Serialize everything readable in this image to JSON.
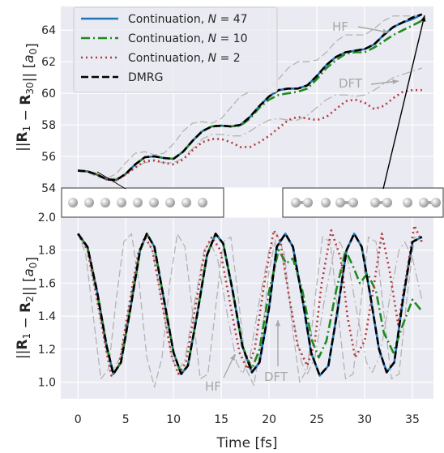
{
  "chart_data": [
    {
      "type": "line",
      "panel": "top",
      "ylabel": "||R1 − R30|| [a0]",
      "ylim": [
        54,
        65.5
      ],
      "xlim": [
        -1.8,
        37.2
      ],
      "yticks": [
        "54",
        "56",
        "58",
        "60",
        "62",
        "64"
      ],
      "grid": true,
      "legend": {
        "position": "top-left",
        "entries": [
          "Continuation, N = 47",
          "Continuation, N = 10",
          "Continuation, N = 2",
          "DMRG"
        ]
      },
      "annotations": [
        "HF",
        "DFT"
      ],
      "series": [
        {
          "name": "Continuation, N = 47",
          "color": "#1f77b4",
          "style": "solid",
          "x": [
            0,
            1,
            2,
            3,
            4,
            5,
            6,
            7,
            8,
            9,
            10,
            11,
            12,
            13,
            14,
            15,
            16,
            17,
            18,
            19,
            20,
            21,
            22,
            23,
            24,
            25,
            26,
            27,
            28,
            29,
            30,
            31,
            32,
            33,
            34,
            35,
            36
          ],
          "y": [
            55.1,
            55.05,
            54.85,
            54.55,
            54.5,
            54.9,
            55.5,
            55.95,
            56.0,
            55.9,
            55.85,
            56.3,
            57.0,
            57.6,
            57.9,
            57.95,
            57.9,
            58.0,
            58.5,
            59.2,
            59.8,
            60.2,
            60.3,
            60.3,
            60.5,
            61.1,
            61.8,
            62.3,
            62.6,
            62.7,
            62.8,
            63.1,
            63.7,
            64.2,
            64.5,
            64.7,
            65.0
          ]
        },
        {
          "name": "Continuation, N = 10",
          "color": "#1e8a1e",
          "style": "dashdot",
          "x": [
            0,
            1,
            2,
            3,
            4,
            5,
            6,
            7,
            8,
            9,
            10,
            11,
            12,
            13,
            14,
            15,
            16,
            17,
            18,
            19,
            20,
            21,
            22,
            23,
            24,
            25,
            26,
            27,
            28,
            29,
            30,
            31,
            32,
            33,
            34,
            35,
            36
          ],
          "y": [
            55.1,
            55.05,
            54.85,
            54.55,
            54.5,
            54.9,
            55.5,
            55.95,
            56.0,
            55.9,
            55.85,
            56.3,
            57.0,
            57.6,
            57.9,
            57.95,
            57.9,
            57.95,
            58.4,
            59.1,
            59.6,
            59.9,
            60.0,
            60.1,
            60.3,
            60.9,
            61.6,
            62.1,
            62.5,
            62.6,
            62.6,
            62.9,
            63.3,
            63.7,
            64.0,
            64.3,
            64.6
          ]
        },
        {
          "name": "Continuation, N = 2",
          "color": "#b03a3a",
          "style": "dotted",
          "x": [
            0,
            1,
            2,
            3,
            4,
            5,
            6,
            7,
            8,
            9,
            10,
            11,
            12,
            13,
            14,
            15,
            16,
            17,
            18,
            19,
            20,
            21,
            22,
            23,
            24,
            25,
            26,
            27,
            28,
            29,
            30,
            31,
            32,
            33,
            34,
            35,
            36
          ],
          "y": [
            55.1,
            55.05,
            54.85,
            54.55,
            54.5,
            54.85,
            55.3,
            55.7,
            55.75,
            55.6,
            55.5,
            55.8,
            56.4,
            56.9,
            57.1,
            57.1,
            56.9,
            56.6,
            56.6,
            56.9,
            57.3,
            57.8,
            58.3,
            58.5,
            58.4,
            58.3,
            58.5,
            59.0,
            59.5,
            59.6,
            59.4,
            59.0,
            59.2,
            59.7,
            60.1,
            60.2,
            60.2
          ]
        },
        {
          "name": "DMRG",
          "color": "#000000",
          "style": "dashed",
          "x": [
            0,
            1,
            2,
            3,
            4,
            5,
            6,
            7,
            8,
            9,
            10,
            11,
            12,
            13,
            14,
            15,
            16,
            17,
            18,
            19,
            20,
            21,
            22,
            23,
            24,
            25,
            26,
            27,
            28,
            29,
            30,
            31,
            32,
            33,
            34,
            35,
            36
          ],
          "y": [
            55.1,
            55.05,
            54.85,
            54.55,
            54.5,
            54.9,
            55.5,
            55.95,
            56.0,
            55.9,
            55.85,
            56.3,
            57.0,
            57.6,
            57.9,
            57.95,
            57.9,
            58.0,
            58.5,
            59.2,
            59.8,
            60.2,
            60.3,
            60.3,
            60.5,
            61.1,
            61.8,
            62.3,
            62.6,
            62.7,
            62.8,
            63.1,
            63.7,
            64.2,
            64.5,
            64.8,
            65.0
          ]
        },
        {
          "name": "",
          "color": "#b4b4b4",
          "style": "dashed",
          "x": [
            0,
            1,
            2,
            3,
            4,
            5,
            6,
            7,
            8,
            9,
            10,
            11,
            12,
            13,
            14,
            15,
            16,
            17,
            18,
            19,
            20,
            21,
            22,
            23,
            24,
            25,
            26,
            27,
            28,
            29,
            30,
            31,
            32,
            33,
            34,
            35,
            36
          ],
          "y": [
            55.1,
            55.0,
            54.7,
            54.6,
            54.9,
            55.6,
            56.2,
            56.3,
            56.1,
            56.2,
            56.8,
            57.6,
            58.1,
            58.2,
            58.1,
            58.4,
            59.1,
            59.8,
            60.1,
            60.1,
            60.3,
            60.9,
            61.6,
            62.0,
            62.0,
            62.1,
            62.6,
            63.3,
            63.7,
            63.7,
            63.7,
            64.1,
            64.6,
            64.9,
            64.9,
            64.9,
            65.0
          ]
        },
        {
          "name": "",
          "color": "#b4b4b4",
          "style": "dashdot",
          "x": [
            0,
            1,
            2,
            3,
            4,
            5,
            6,
            7,
            8,
            9,
            10,
            11,
            12,
            13,
            14,
            15,
            16,
            17,
            18,
            19,
            20,
            21,
            22,
            23,
            24,
            25,
            26,
            27,
            28,
            29,
            30,
            31,
            32,
            33,
            34,
            35,
            36
          ],
          "y": [
            55.1,
            55.0,
            54.8,
            54.6,
            54.6,
            54.9,
            55.3,
            55.6,
            55.7,
            55.6,
            55.6,
            55.9,
            56.5,
            57.1,
            57.4,
            57.4,
            57.3,
            57.3,
            57.6,
            58.0,
            58.3,
            58.4,
            58.3,
            58.3,
            58.6,
            59.1,
            59.6,
            59.9,
            59.9,
            59.8,
            59.9,
            60.2,
            60.6,
            61.0,
            61.2,
            61.4,
            61.6
          ]
        }
      ]
    },
    {
      "type": "line",
      "panel": "bottom",
      "xlabel": "Time [fs]",
      "ylabel": "||R1 − R2|| [a0]",
      "ylim": [
        0.9,
        2.0
      ],
      "xlim": [
        -1.8,
        37.2
      ],
      "yticks": [
        "1.0",
        "1.2",
        "1.4",
        "1.6",
        "1.8",
        "2.0"
      ],
      "xticks": [
        "0",
        "5",
        "10",
        "15",
        "20",
        "25",
        "30",
        "35"
      ],
      "grid": true,
      "annotations": [
        "HF",
        "DFT"
      ],
      "series": [
        {
          "name": "Continuation, N = 47",
          "color": "#1f77b4",
          "style": "solid",
          "x": [
            0,
            1,
            2,
            3,
            3.7,
            4.5,
            5.5,
            6.5,
            7.2,
            8,
            9,
            10,
            10.8,
            11.5,
            12.5,
            13.5,
            14.4,
            15.2,
            16.2,
            17.2,
            18.2,
            19,
            20,
            20.8,
            21.7,
            22.5,
            23.5,
            24.4,
            25.3,
            26.2,
            27.2,
            28.1,
            28.9,
            29.7,
            30.6,
            31.5,
            32.3,
            33.1,
            34,
            35,
            36
          ],
          "y": [
            1.9,
            1.82,
            1.55,
            1.22,
            1.05,
            1.12,
            1.45,
            1.8,
            1.9,
            1.82,
            1.5,
            1.18,
            1.05,
            1.1,
            1.42,
            1.77,
            1.9,
            1.84,
            1.55,
            1.22,
            1.06,
            1.12,
            1.45,
            1.82,
            1.9,
            1.82,
            1.5,
            1.18,
            1.04,
            1.1,
            1.45,
            1.8,
            1.9,
            1.82,
            1.52,
            1.2,
            1.06,
            1.12,
            1.5,
            1.85,
            1.88
          ]
        },
        {
          "name": "Continuation, N = 10",
          "color": "#1e8a1e",
          "style": "dashdot",
          "x": [
            0,
            1,
            2,
            3,
            3.7,
            4.5,
            5.5,
            6.5,
            7.2,
            8,
            9,
            10,
            10.8,
            11.5,
            12.5,
            13.5,
            14.4,
            15.2,
            16.2,
            17.2,
            18.2,
            19,
            20,
            21,
            21.8,
            22.5,
            23.5,
            24.5,
            25.2,
            26,
            27,
            28,
            28.8,
            29.5,
            30.3,
            31.2,
            32,
            33,
            34,
            35,
            36
          ],
          "y": [
            1.9,
            1.82,
            1.55,
            1.22,
            1.05,
            1.12,
            1.45,
            1.8,
            1.9,
            1.82,
            1.5,
            1.18,
            1.05,
            1.1,
            1.42,
            1.77,
            1.9,
            1.84,
            1.55,
            1.22,
            1.08,
            1.2,
            1.55,
            1.8,
            1.72,
            1.75,
            1.55,
            1.25,
            1.15,
            1.25,
            1.55,
            1.8,
            1.7,
            1.6,
            1.66,
            1.55,
            1.3,
            1.18,
            1.35,
            1.5,
            1.43
          ]
        },
        {
          "name": "Continuation, N = 2",
          "color": "#b03a3a",
          "style": "dotted",
          "x": [
            0,
            1,
            2,
            3,
            3.5,
            4.3,
            5.3,
            6.3,
            7,
            7.8,
            8.8,
            9.8,
            10.5,
            11.3,
            12.3,
            13.3,
            14,
            14.9,
            15.9,
            16.9,
            17.7,
            18.5,
            19.5,
            20.5,
            21.2,
            22,
            23,
            24,
            24.8,
            25.5,
            26.5,
            27.5,
            28.2,
            29,
            30,
            31,
            31.8,
            32.6,
            33.5,
            34.5,
            35.2,
            36
          ],
          "y": [
            1.9,
            1.8,
            1.5,
            1.18,
            1.04,
            1.1,
            1.45,
            1.78,
            1.88,
            1.8,
            1.48,
            1.16,
            1.05,
            1.12,
            1.46,
            1.8,
            1.88,
            1.8,
            1.48,
            1.18,
            1.08,
            1.2,
            1.6,
            1.92,
            1.85,
            1.55,
            1.22,
            1.1,
            1.25,
            1.6,
            1.92,
            1.75,
            1.4,
            1.15,
            1.25,
            1.6,
            1.9,
            1.68,
            1.35,
            1.7,
            1.95,
            1.85
          ]
        },
        {
          "name": "DMRG",
          "color": "#000000",
          "style": "dashed",
          "x": [
            0,
            1,
            2,
            3,
            3.7,
            4.5,
            5.5,
            6.5,
            7.2,
            8,
            9,
            10,
            10.8,
            11.5,
            12.5,
            13.5,
            14.4,
            15.2,
            16.2,
            17.2,
            18.2,
            19,
            20,
            20.8,
            21.7,
            22.5,
            23.5,
            24.4,
            25.3,
            26.2,
            27.2,
            28.1,
            28.9,
            29.7,
            30.6,
            31.5,
            32.3,
            33.1,
            34,
            35,
            36
          ],
          "y": [
            1.9,
            1.82,
            1.55,
            1.22,
            1.05,
            1.12,
            1.45,
            1.8,
            1.9,
            1.82,
            1.5,
            1.18,
            1.05,
            1.1,
            1.42,
            1.77,
            1.9,
            1.84,
            1.55,
            1.22,
            1.06,
            1.12,
            1.45,
            1.82,
            1.9,
            1.82,
            1.5,
            1.18,
            1.04,
            1.1,
            1.45,
            1.8,
            1.9,
            1.82,
            1.52,
            1.2,
            1.06,
            1.12,
            1.5,
            1.85,
            1.88
          ]
        },
        {
          "name": "",
          "color": "#b4b4b4",
          "style": "dashed",
          "x": [
            0,
            0.8,
            1.6,
            2.4,
            3.2,
            4,
            4.8,
            5.6,
            6.4,
            7.2,
            8,
            8.8,
            9.6,
            10.4,
            11.2,
            12,
            12.8,
            13.6,
            14.4,
            15.2,
            16,
            16.8,
            17.6,
            18.4,
            19.2,
            20,
            20.8,
            21.6,
            22.4,
            23.2,
            24,
            24.8,
            25.6,
            26.4,
            27.2,
            28,
            28.8,
            29.6,
            30.4,
            31.2,
            32,
            32.8,
            33.6,
            34.4,
            35.2,
            36
          ],
          "y": [
            1.9,
            1.78,
            1.4,
            1.02,
            1.08,
            1.5,
            1.85,
            1.9,
            1.6,
            1.15,
            0.97,
            1.15,
            1.6,
            1.9,
            1.82,
            1.42,
            1.02,
            1.05,
            1.45,
            1.85,
            1.88,
            1.5,
            1.08,
            0.98,
            1.25,
            1.68,
            1.9,
            1.78,
            1.35,
            1.0,
            1.08,
            1.5,
            1.88,
            1.85,
            1.42,
            1.02,
            1.05,
            1.48,
            1.88,
            1.85,
            1.42,
            1.02,
            1.05,
            1.5,
            1.88,
            1.85
          ]
        },
        {
          "name": "",
          "color": "#b4b4b4",
          "style": "dashdot",
          "x": [
            0,
            1,
            2,
            3,
            3.6,
            4.4,
            5.4,
            6.4,
            7,
            7.8,
            8.8,
            9.8,
            10.4,
            11.2,
            12.2,
            13.2,
            13.8,
            14.6,
            15.6,
            16.6,
            17.2,
            18,
            19,
            20,
            20.6,
            21.4,
            22.4,
            23.4,
            24,
            24.8,
            25.8,
            26.8,
            27.4,
            28.2,
            29.2,
            30.2,
            30.8,
            31.6,
            32.6,
            33.6,
            34.2,
            35,
            36
          ],
          "y": [
            1.9,
            1.8,
            1.5,
            1.18,
            1.06,
            1.15,
            1.48,
            1.8,
            1.88,
            1.8,
            1.48,
            1.16,
            1.06,
            1.14,
            1.48,
            1.8,
            1.85,
            1.75,
            1.42,
            1.12,
            1.05,
            1.15,
            1.5,
            1.8,
            1.85,
            1.75,
            1.42,
            1.12,
            1.05,
            1.15,
            1.5,
            1.8,
            1.85,
            1.75,
            1.42,
            1.12,
            1.06,
            1.16,
            1.5,
            1.8,
            1.85,
            1.75,
            1.5
          ]
        }
      ]
    }
  ],
  "labels": {
    "top_ylabel": "||R",
    "bottom_ylabel": "||R",
    "xlabel": "Time [fs]",
    "hf": "HF",
    "dft": "DFT",
    "legend": [
      "Continuation, N = 47",
      "Continuation, N = 10",
      "Continuation, N = 2",
      "DMRG"
    ]
  }
}
